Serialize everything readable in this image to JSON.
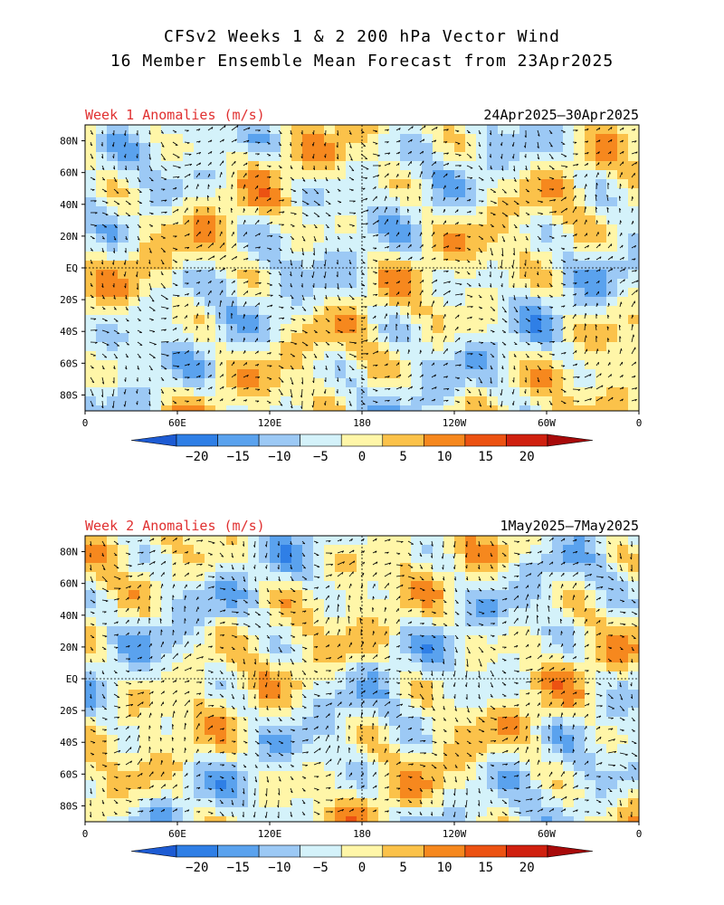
{
  "title": {
    "line1": "CFSv2 Weeks 1 & 2 200 hPa Vector Wind",
    "line2": "16 Member Ensemble Mean Forecast from 23Apr2025"
  },
  "panels": [
    {
      "label": "Week 1 Anomalies (m/s)",
      "dates": "24Apr2025—30Apr2025"
    },
    {
      "label": "Week 2 Anomalies (m/s)",
      "dates": "1May2025—7May2025"
    }
  ],
  "lat_labels": [
    "80N",
    "60N",
    "40N",
    "20N",
    "EQ",
    "20S",
    "40S",
    "60S",
    "80S"
  ],
  "lon_labels": [
    "0",
    "60E",
    "120E",
    "180",
    "120W",
    "60W",
    "0"
  ],
  "colorbar": {
    "labels": [
      "−20",
      "−15",
      "−10",
      "−5",
      "0",
      "5",
      "10",
      "15",
      "20"
    ],
    "colors": [
      "#1d5bd3",
      "#2f7fe6",
      "#5aa2ee",
      "#9cc9f5",
      "#d4f2fa",
      "#fff6a8",
      "#fbc24a",
      "#f6881e",
      "#ec5212",
      "#d0200f",
      "#a80a0a"
    ]
  },
  "colors": {
    "title_red": "#e03030",
    "ocean_neutral": "#d4f2fa"
  }
}
